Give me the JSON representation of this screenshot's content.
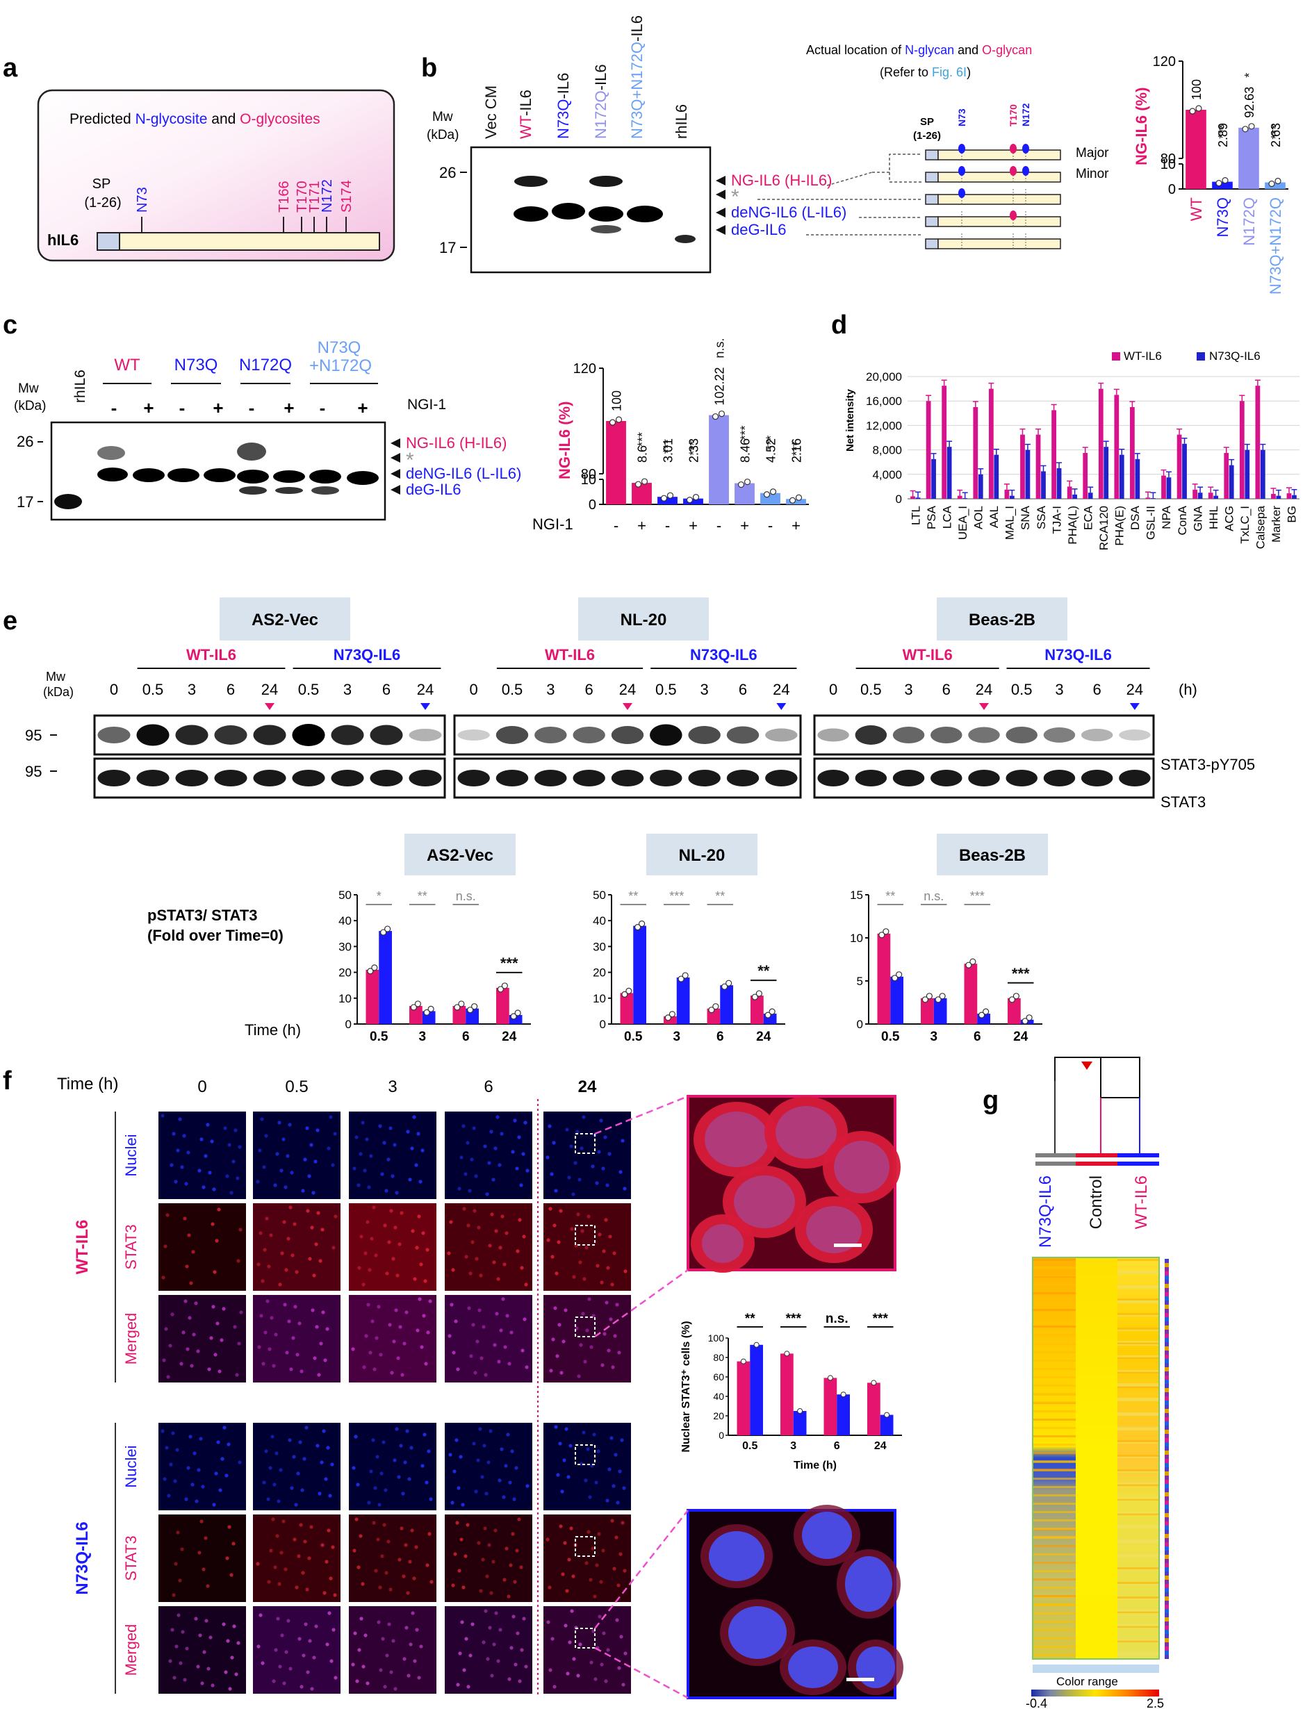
{
  "colors": {
    "wt": "#e5156f",
    "n73q": "#1a1aff",
    "n172q": "#8f90ef",
    "double": "#6aa1f5",
    "gray": "#7f7f7f",
    "hdr": "#d9e3ee",
    "sp": "#c9d3ea",
    "gene": "#fdf6d0"
  },
  "panel_labels": {
    "a": "a",
    "b": "b",
    "c": "c",
    "d": "d",
    "e": "e",
    "f": "f",
    "g": "g"
  },
  "a": {
    "title_1": "Predicted ",
    "title_n": "N-glycosite",
    "title_2": " and ",
    "title_o": "O-glycosites",
    "sp": "SP",
    "sp_range": "(1-26)",
    "gene": "hIL6",
    "sites": [
      "N73",
      "T166",
      "T170",
      "T171",
      "N172",
      "S174"
    ]
  },
  "b": {
    "mw": "Mw",
    "kda": "(kDa)",
    "mw_26": "26",
    "mw_17": "17",
    "lanes": [
      "Vec CM",
      "WT-IL6",
      "N73Q-IL6",
      "N172Q-IL6",
      "N73Q+N172Q-IL6",
      "rhIL6"
    ],
    "band_labels": [
      {
        "a": "NG-IL6",
        "b": "(H-IL6)"
      },
      {
        "a": "*",
        "b": ""
      },
      {
        "a": "deNG-IL6",
        "b": "(L-IL6)"
      },
      {
        "a": "deG-IL6",
        "b": ""
      }
    ],
    "map_title_1": "Actual location of ",
    "map_title_n": "N-glycan",
    "map_title_2": " and ",
    "map_title_o": "O-glycan",
    "map_ref_1": "(Refer to ",
    "map_ref_link": "Fig. 6I",
    "map_ref_2": ")",
    "map_sp": "SP",
    "map_sp_range": "(1-26)",
    "map_sites": [
      "N73",
      "T170",
      "N172"
    ],
    "major": "Major",
    "minor": "Minor"
  },
  "b_chart": {
    "ylabel": "NG-IL6 (%)",
    "yticks": [
      "0",
      "10",
      "80",
      "120"
    ],
    "categories": [
      "WT",
      "N73Q",
      "N172Q",
      "N73Q+N172Q"
    ],
    "values": [
      100,
      2.89,
      92.63,
      2.63
    ],
    "value_labels": [
      "100",
      "2.89",
      "92.63",
      "2.63"
    ],
    "sig": [
      "",
      "***",
      "*",
      "***"
    ]
  },
  "c": {
    "mw": "Mw",
    "kda": "(kDa)",
    "mw_26": "26",
    "mw_17": "17",
    "rhil6": "rhIL6",
    "groups": [
      "WT",
      "N73Q",
      "N172Q",
      "N73Q",
      "+N172Q"
    ],
    "signs": [
      "-",
      "+",
      "-",
      "+",
      "-",
      "+",
      "-",
      "+"
    ],
    "ngi": "NGI-1",
    "band_labels": [
      {
        "a": "NG-IL6",
        "b": "(H-IL6)"
      },
      {
        "a": "*",
        "b": ""
      },
      {
        "a": "deNG-IL6",
        "b": "(L-IL6)"
      },
      {
        "a": "deG-IL6",
        "b": ""
      }
    ]
  },
  "c_chart": {
    "ylabel": "NG-IL6 (%)",
    "yticks": [
      "0",
      "10",
      "80",
      "120"
    ],
    "values": [
      100,
      8.6,
      3.01,
      2.33,
      102.22,
      8.46,
      4.52,
      2.16
    ],
    "value_labels": [
      "100",
      "8.6",
      "3.01",
      "2.33",
      "102.22",
      "8.46",
      "4.52",
      "2.16"
    ],
    "sig": [
      "",
      "***",
      "***",
      "***",
      "n.s.",
      "***",
      "***",
      "***"
    ],
    "ngi": "NGI-1",
    "signs": [
      "-",
      "+",
      "-",
      "+",
      "-",
      "+",
      "-",
      "+"
    ]
  },
  "chart_data": [
    {
      "type": "bar",
      "title": "",
      "ylabel": "Net intensity",
      "ylim": [
        0,
        20000
      ],
      "yticks": [
        "0",
        "4,000",
        "8,000",
        "12,000",
        "16,000",
        "20,000"
      ],
      "categories": [
        "LTL",
        "PSA",
        "LCA",
        "UEA_I",
        "AOL",
        "AAL",
        "MAL_I",
        "SNA",
        "SSA",
        "TJA-I",
        "PHA(L)",
        "ECA",
        "RCA120",
        "PHA(E)",
        "DSA",
        "GSL-II",
        "NPA",
        "ConA",
        "GNA",
        "HHL",
        "ACG",
        "TxLC_I",
        "Calsepa",
        "Marker",
        "BG"
      ],
      "series": [
        {
          "name": "WT-IL6",
          "values": [
            400,
            16000,
            18500,
            500,
            15000,
            18000,
            1500,
            10500,
            10500,
            14500,
            2000,
            7500,
            18000,
            17000,
            15000,
            200,
            3800,
            10500,
            1500,
            1000,
            7500,
            16000,
            18500,
            800,
            900
          ]
        },
        {
          "name": "N73Q-IL6",
          "values": [
            200,
            6500,
            8500,
            100,
            4000,
            7200,
            500,
            8000,
            4500,
            5000,
            700,
            1000,
            8500,
            7200,
            6500,
            100,
            3500,
            9000,
            1000,
            500,
            5500,
            8000,
            8000,
            500,
            600
          ]
        }
      ],
      "legend": "top-right"
    }
  ],
  "e": {
    "cells": [
      "AS2-Vec",
      "NL-20",
      "Beas-2B"
    ],
    "wt": "WT-IL6",
    "n73q": "N73Q-IL6",
    "times": [
      "0",
      "0.5",
      "3",
      "6",
      "24",
      "0.5",
      "3",
      "6",
      "24"
    ],
    "h": "(h)",
    "mw": "Mw",
    "kda": "(kDa)",
    "mw_95": "95",
    "row1": "STAT3-pY705",
    "row2": "STAT3",
    "ylabel_1": "pSTAT3/ STAT3",
    "ylabel_2": "(Fold over Time=0)",
    "time_h": "Time (h)",
    "xcats": [
      "0.5",
      "3",
      "6",
      "24"
    ],
    "charts": [
      {
        "yticks": [
          "0",
          "10",
          "20",
          "30",
          "40",
          "50"
        ],
        "ymax": 50,
        "wt": [
          21,
          7,
          7,
          14
        ],
        "n73q": [
          36,
          5,
          6,
          3.5
        ],
        "sig": [
          "*",
          "**",
          "n.s.",
          "***"
        ]
      },
      {
        "yticks": [
          "0",
          "10",
          "20",
          "30",
          "40",
          "50"
        ],
        "ymax": 50,
        "wt": [
          12,
          3,
          6,
          11
        ],
        "n73q": [
          38,
          18,
          15,
          4
        ],
        "sig": [
          "**",
          "***",
          "**",
          "**"
        ]
      },
      {
        "yticks": [
          "0",
          "5",
          "10",
          "15"
        ],
        "ymax": 15,
        "wt": [
          10.5,
          3,
          7,
          3
        ],
        "n73q": [
          5.5,
          3,
          1.2,
          0.5
        ],
        "sig": [
          "**",
          "n.s.",
          "***",
          "***"
        ]
      }
    ]
  },
  "f": {
    "time_label": "Time (h)",
    "times": [
      "0",
      "0.5",
      "3",
      "6",
      "24"
    ],
    "rows": [
      "Nuclei",
      "STAT3",
      "Merged"
    ],
    "group_wt": "WT-IL6",
    "group_n73q": "N73Q-IL6",
    "chart_ylabel": "Nuclear STAT3⁺ cells (%)",
    "chart_xlabel": "Time (h)",
    "chart_yticks": [
      "0",
      "20",
      "40",
      "60",
      "80",
      "100"
    ],
    "chart_cats": [
      "0.5",
      "3",
      "6",
      "24"
    ],
    "chart_wt": [
      76,
      84,
      59,
      54
    ],
    "chart_n73q": [
      93,
      25,
      42,
      21
    ],
    "chart_sig": [
      "**",
      "***",
      "n.s.",
      "***"
    ]
  },
  "g": {
    "columns": [
      "N73Q-IL6",
      "Control",
      "WT-IL6"
    ],
    "color_range": "Color range",
    "min": "-0.4",
    "max": "2.5"
  }
}
